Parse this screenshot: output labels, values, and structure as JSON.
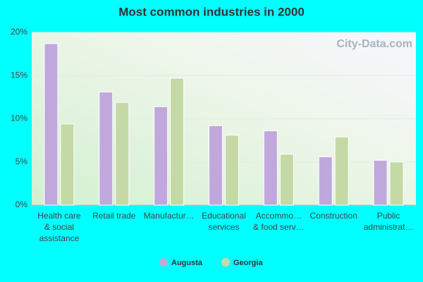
{
  "chart_data": {
    "type": "bar",
    "title": "Most common industries in 2000",
    "watermark": "City-Data.com",
    "categories": [
      [
        "Health care",
        "& social",
        "assistance"
      ],
      [
        "Retail trade"
      ],
      [
        "Manufactur…"
      ],
      [
        "Educational",
        "services"
      ],
      [
        "Accommo…",
        "& food serv…"
      ],
      [
        "Construction"
      ],
      [
        "Public",
        "administrat…"
      ]
    ],
    "series": [
      {
        "name": "Augusta",
        "color": "#c0a8dc",
        "values": [
          18.7,
          13.1,
          11.4,
          9.2,
          8.6,
          5.6,
          5.2
        ]
      },
      {
        "name": "Georgia",
        "color": "#c5d9a6",
        "values": [
          9.4,
          11.9,
          14.7,
          8.1,
          5.9,
          7.9,
          5.0
        ]
      }
    ],
    "ylim": [
      0,
      20
    ],
    "yticks": [
      {
        "value": 0,
        "label": "0%"
      },
      {
        "value": 5,
        "label": "5%"
      },
      {
        "value": 10,
        "label": "10%"
      },
      {
        "value": 15,
        "label": "15%"
      },
      {
        "value": 20,
        "label": "20%"
      }
    ],
    "grid": true
  }
}
